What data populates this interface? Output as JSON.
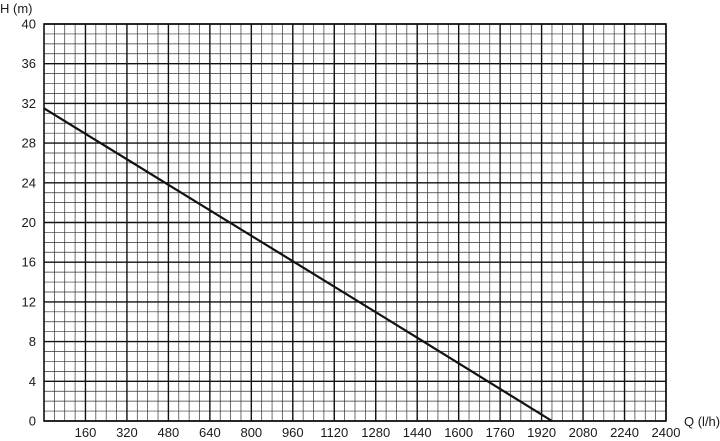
{
  "chart_data": {
    "type": "line",
    "title": "",
    "xlabel": "Q (l/h)",
    "ylabel": "H (m)",
    "xlim": [
      0,
      2400
    ],
    "ylim": [
      0,
      40
    ],
    "x_ticks": [
      160,
      320,
      480,
      640,
      800,
      960,
      1120,
      1280,
      1440,
      1600,
      1760,
      1920,
      2080,
      2240,
      2400
    ],
    "y_ticks": [
      0,
      4,
      8,
      12,
      16,
      20,
      24,
      28,
      32,
      36,
      40
    ],
    "grid": true,
    "series": [
      {
        "color": "#111111",
        "x": [
          0,
          480,
          960,
          1440,
          1960
        ],
        "y": [
          31.5,
          23.8,
          16.1,
          8.4,
          0
        ]
      }
    ]
  }
}
